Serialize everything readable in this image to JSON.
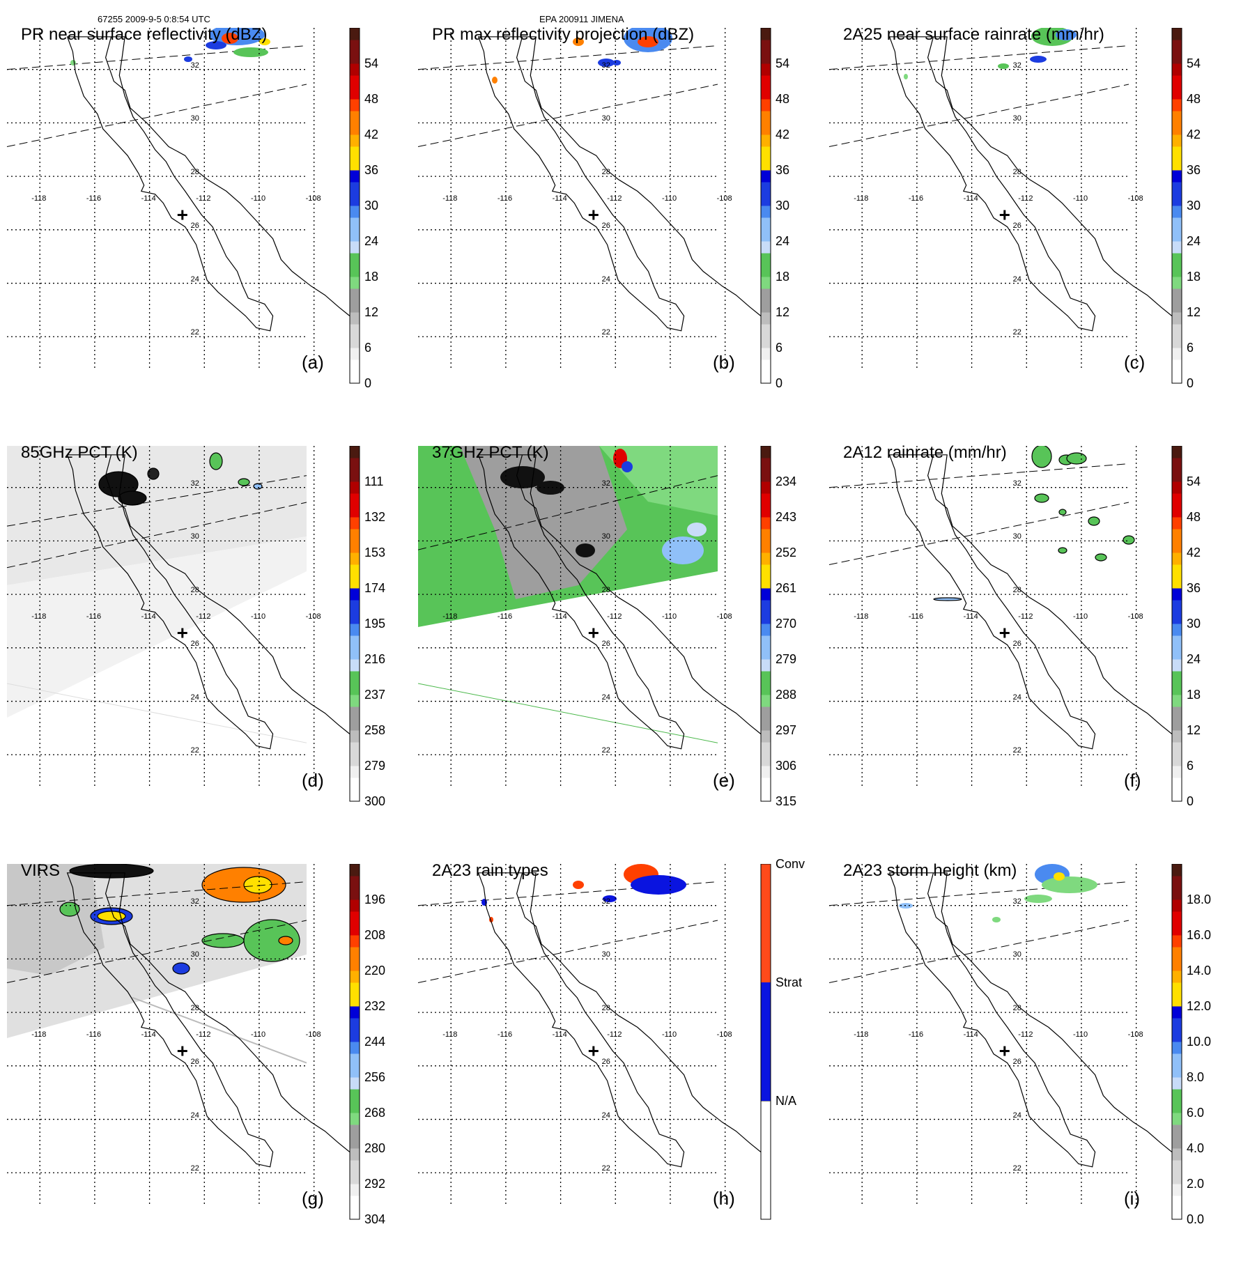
{
  "header": {
    "left": "67255 2009-9-5 0:8:54 UTC",
    "center": "EPA 200911 JIMENA"
  },
  "map": {
    "lat_labels": [
      "32",
      "30",
      "28",
      "26",
      "24",
      "22"
    ],
    "lon_labels": [
      "-118",
      "-116",
      "-114",
      "-112",
      "-110",
      "-108"
    ]
  },
  "panels": [
    {
      "id": "a",
      "title": "PR near surface reflectivity (dBZ)",
      "label": "(a)",
      "colorbar": {
        "ticks": [
          "54",
          "48",
          "42",
          "36",
          "30",
          "24",
          "18",
          "12",
          "6",
          "0"
        ]
      }
    },
    {
      "id": "b",
      "title": "PR max reflectivity projection (dBZ)",
      "label": "(b)",
      "colorbar": {
        "ticks": [
          "54",
          "48",
          "42",
          "36",
          "30",
          "24",
          "18",
          "12",
          "6",
          "0"
        ]
      }
    },
    {
      "id": "c",
      "title": "2A25 near surface rainrate (mm/hr)",
      "label": "(c)",
      "colorbar": {
        "ticks": [
          "54",
          "48",
          "42",
          "36",
          "30",
          "24",
          "18",
          "12",
          "6",
          "0"
        ]
      }
    },
    {
      "id": "d",
      "title": "85GHz PCT (K)",
      "label": "(d)",
      "colorbar": {
        "ticks": [
          "111",
          "132",
          "153",
          "174",
          "195",
          "216",
          "237",
          "258",
          "279",
          "300"
        ]
      }
    },
    {
      "id": "e",
      "title": "37GHz PCT (K)",
      "label": "(e)",
      "colorbar": {
        "ticks": [
          "234",
          "243",
          "252",
          "261",
          "270",
          "279",
          "288",
          "297",
          "306",
          "315"
        ]
      }
    },
    {
      "id": "f",
      "title": "2A12 rainrate (mm/hr)",
      "label": "(f)",
      "colorbar": {
        "ticks": [
          "54",
          "48",
          "42",
          "36",
          "30",
          "24",
          "18",
          "12",
          "6",
          "0"
        ]
      }
    },
    {
      "id": "g",
      "title": "VIRS",
      "label": "(g)",
      "colorbar": {
        "ticks": [
          "196",
          "208",
          "220",
          "232",
          "244",
          "256",
          "268",
          "280",
          "292",
          "304"
        ]
      }
    },
    {
      "id": "h",
      "title": "2A23 rain types",
      "label": "(h)",
      "colorbar": {
        "ticks": [
          "Conv",
          "Strat",
          "N/A"
        ]
      }
    },
    {
      "id": "i",
      "title": "2A23 storm height (km)",
      "label": "(i)",
      "colorbar": {
        "ticks": [
          "18.0",
          "16.0",
          "14.0",
          "12.0",
          "10.0",
          "8.0",
          "6.0",
          "4.0",
          "2.0",
          "0.0"
        ]
      }
    }
  ],
  "colors": {
    "scale": [
      "#ffffff",
      "#f0f0f0",
      "#d8d8d8",
      "#bdbdbd",
      "#9e9e9e",
      "#7fd97f",
      "#58c458",
      "#c8dcf8",
      "#90c0f8",
      "#4a8af0",
      "#1c3ce0",
      "#0000d8",
      "#ffe000",
      "#ffb000",
      "#ff8000",
      "#ff4000",
      "#e00000",
      "#b00000",
      "#7a1010",
      "#4a1a10"
    ],
    "rain_types": [
      "#ffffff",
      "#0a14e0",
      "#ff4a1a"
    ]
  }
}
